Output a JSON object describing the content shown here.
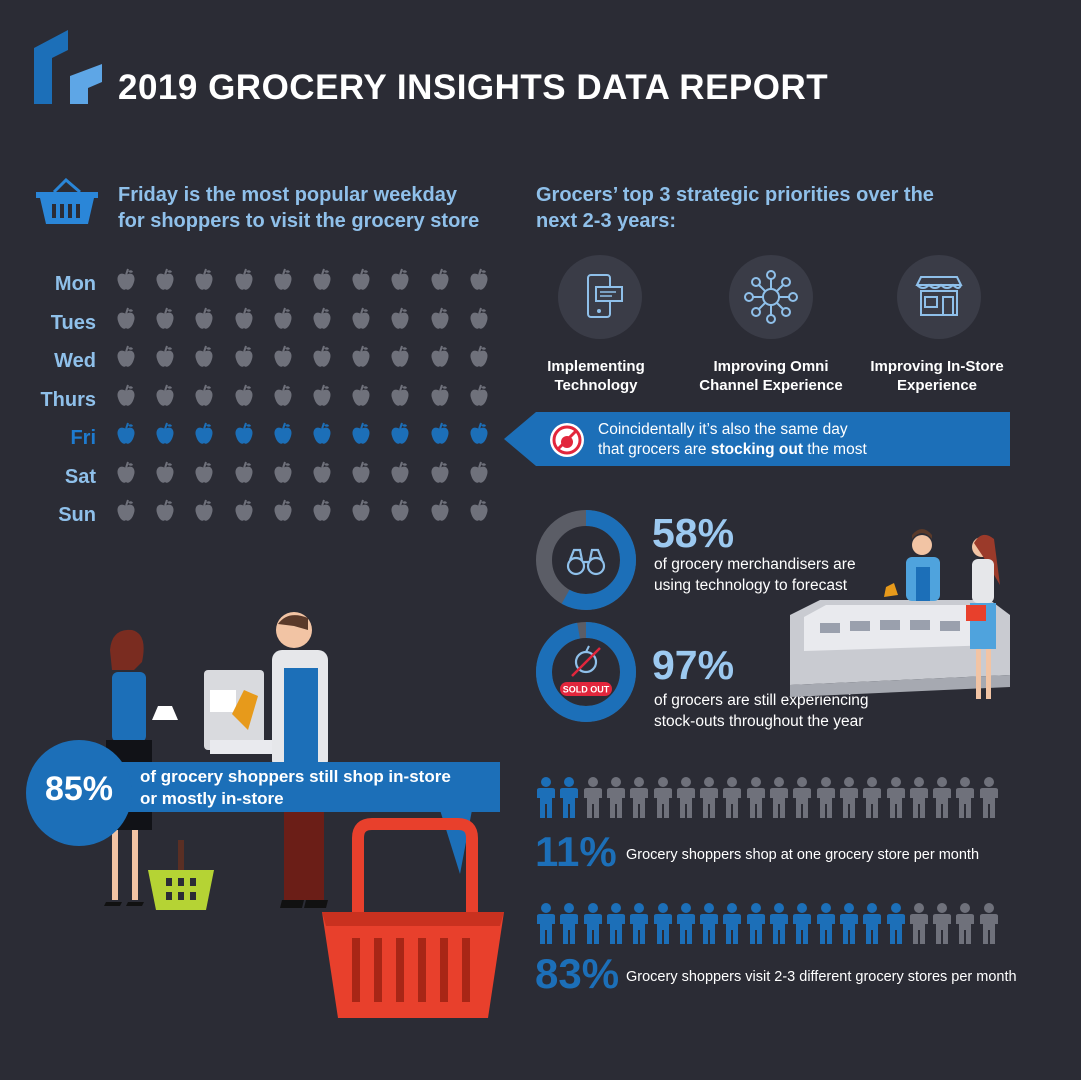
{
  "header": {
    "title": "2019 GROCERY INSIGHTS DATA REPORT"
  },
  "weekday_section": {
    "heading_line1": "Friday is the most popular weekday",
    "heading_line2": "for shoppers to visit the grocery store",
    "icon": "basket-icon"
  },
  "priorities_section": {
    "heading_line1": "Grocers’ top 3 strategic priorities over the",
    "heading_line2": "next 2-3 years:",
    "items": [
      {
        "line1": "Implementing",
        "line2": "Technology",
        "icon": "smartphone-chat-icon"
      },
      {
        "line1": "Improving Omni",
        "line2": "Channel Experience",
        "icon": "network-hub-icon"
      },
      {
        "line1": "Improving In-Store",
        "line2": "Experience",
        "icon": "storefront-icon"
      }
    ]
  },
  "callout": {
    "line1": "Coincidentally it’s also the same day",
    "line2_pre": "that grocers are ",
    "line2_bold": "stocking out",
    "line2_post": " the most",
    "icon": "no-apple-icon"
  },
  "stats": {
    "merch": {
      "value": "58%",
      "line1": "of grocery merchandisers are",
      "line2": "using technology to forecast",
      "icon": "binoculars-icon"
    },
    "stockout": {
      "value": "97%",
      "line1": "of grocers are still experiencing",
      "line2": "stock-outs throughout the year",
      "badge": "SOLD OUT",
      "icon": "crossed-apple-icon"
    },
    "instore": {
      "value": "85%",
      "line1": "of grocery shoppers still shop in-store",
      "line2": "or mostly in-store"
    },
    "one_store": {
      "value": "11%",
      "text": "Grocery shoppers shop at one grocery store per month"
    },
    "multi_store": {
      "value": "83%",
      "text": "Grocery shoppers visit 2-3 different grocery stores per month"
    }
  },
  "chart_data": [
    {
      "type": "pictogram",
      "categories": [
        "Mon",
        "Tues",
        "Wed",
        "Thurs",
        "Fri",
        "Sat",
        "Sun"
      ],
      "icons_per_row": 10,
      "highlight": "Fri"
    },
    {
      "type": "donut",
      "value": 58
    },
    {
      "type": "donut",
      "value": 97
    },
    {
      "type": "pictogram",
      "value": 11,
      "icons_total": 20,
      "icons_highlighted": 2
    },
    {
      "type": "pictogram",
      "value": 83,
      "icons_total": 20,
      "icons_highlighted": 16
    }
  ],
  "colors": {
    "background": "#2b2c35",
    "accent_blue": "#1c6fb8",
    "light_blue": "#8fc0ea",
    "dim_icon": "#6f717b",
    "basket_red": "#e8402c",
    "basket_green": "#b5d334"
  }
}
